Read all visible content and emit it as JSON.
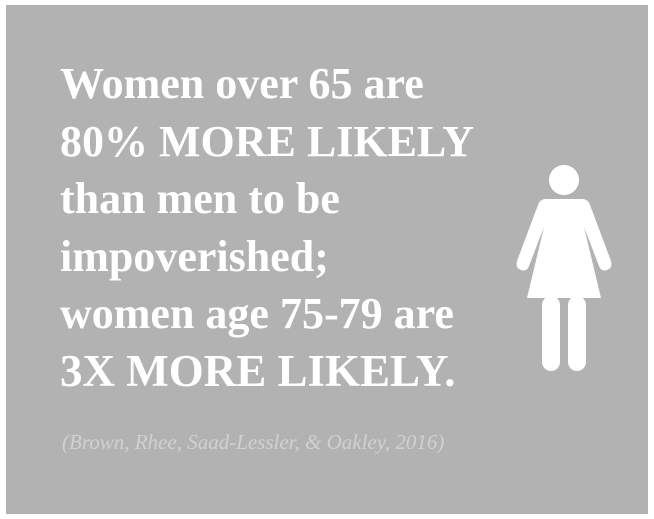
{
  "headline": {
    "line1": "Women over 65 are",
    "line2": "80% MORE LIKELY",
    "line3": "than men to be",
    "line4": "impoverished;",
    "line5": "women age 75-79 are",
    "line6": "3X MORE LIKELY."
  },
  "citation": "(Brown, Rhee, Saad-Lessler, & Oakley, 2016)",
  "icon": "woman-icon",
  "colors": {
    "background": "#b2b2b2",
    "text": "#ffffff",
    "citation": "#d1d1d1"
  }
}
